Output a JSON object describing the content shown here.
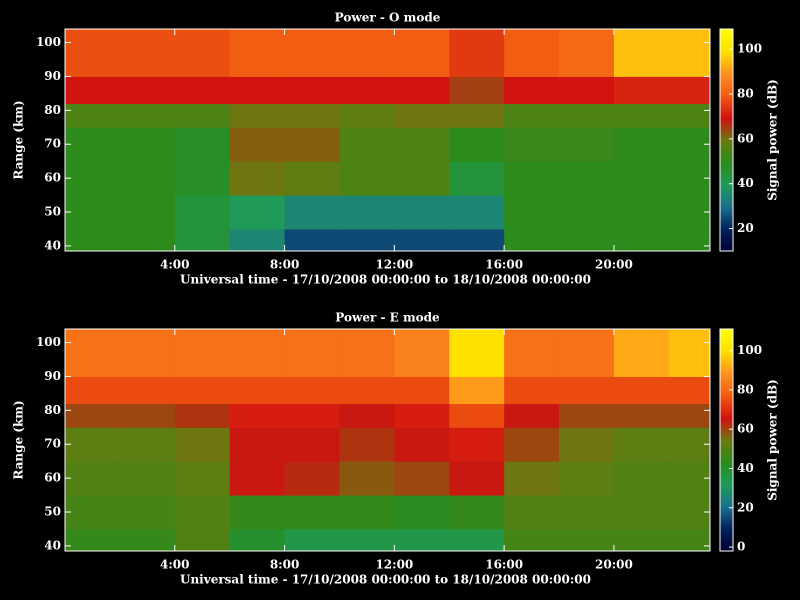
{
  "chart_data": [
    {
      "type": "heatmap",
      "title": "Power - O mode",
      "xlabel": "Universal time - 17/10/2008 00:00:00 to 18/10/2008 00:00:00",
      "ylabel": "Range (km)",
      "colorbar_label": "Signal power (dB)",
      "x_edges": [
        0,
        2,
        4,
        6,
        8,
        10,
        12,
        14,
        16,
        18,
        20,
        22,
        23.5
      ],
      "y_edges": [
        38.5,
        45,
        55,
        65,
        75,
        82,
        90,
        104
      ],
      "z": [
        [
          50,
          50,
          45,
          35,
          25,
          25,
          25,
          25,
          50,
          50,
          50,
          50
        ],
        [
          50,
          50,
          45,
          40,
          35,
          35,
          35,
          35,
          50,
          50,
          50,
          50
        ],
        [
          50,
          50,
          48,
          60,
          58,
          55,
          55,
          45,
          50,
          50,
          50,
          50
        ],
        [
          50,
          50,
          48,
          62,
          62,
          55,
          55,
          50,
          52,
          52,
          50,
          50
        ],
        [
          55,
          55,
          55,
          60,
          60,
          58,
          60,
          60,
          55,
          55,
          55,
          55
        ],
        [
          70,
          70,
          70,
          70,
          70,
          70,
          70,
          65,
          70,
          70,
          72,
          72
        ],
        [
          78,
          78,
          78,
          80,
          80,
          80,
          80,
          75,
          80,
          82,
          95,
          95
        ]
      ],
      "xlim": [
        0,
        23.5
      ],
      "ylim": [
        38.5,
        104
      ],
      "xticks": [
        {
          "value": 4,
          "label": "4:00"
        },
        {
          "value": 8,
          "label": "8:00"
        },
        {
          "value": 12,
          "label": "12:00"
        },
        {
          "value": 16,
          "label": "16:00"
        },
        {
          "value": 20,
          "label": "20:00"
        }
      ],
      "yticks": [
        40,
        50,
        60,
        70,
        80,
        90,
        100
      ],
      "clim": [
        10,
        109
      ],
      "cticks": [
        20,
        40,
        60,
        80,
        100
      ],
      "colormap": [
        "#000030",
        "#00205a",
        "#1a6f8c",
        "#1f9a5a",
        "#2a8c1c",
        "#6a7a10",
        "#d01010",
        "#f05a10",
        "#ff9020",
        "#ffe000",
        "#ffff00"
      ]
    },
    {
      "type": "heatmap",
      "title": "Power - E mode",
      "xlabel": "Universal time - 17/10/2008 00:00:00 to 18/10/2008 00:00:00",
      "ylabel": "Range (km)",
      "colorbar_label": "Signal power (dB)",
      "x_edges": [
        0,
        2,
        4,
        6,
        8,
        10,
        12,
        14,
        16,
        18,
        20,
        22,
        23.5
      ],
      "y_edges": [
        38.5,
        45,
        55,
        65,
        75,
        82,
        90,
        104
      ],
      "z": [
        [
          45,
          45,
          50,
          40,
          35,
          35,
          35,
          35,
          48,
          48,
          48,
          48
        ],
        [
          48,
          48,
          50,
          45,
          45,
          45,
          42,
          45,
          50,
          50,
          50,
          50
        ],
        [
          50,
          50,
          52,
          65,
          63,
          58,
          60,
          65,
          55,
          52,
          50,
          50
        ],
        [
          52,
          52,
          55,
          65,
          65,
          62,
          65,
          68,
          60,
          55,
          52,
          52
        ],
        [
          60,
          60,
          62,
          68,
          68,
          65,
          68,
          75,
          65,
          60,
          60,
          60
        ],
        [
          75,
          75,
          75,
          75,
          75,
          75,
          75,
          90,
          75,
          75,
          75,
          75
        ],
        [
          82,
          82,
          82,
          82,
          82,
          82,
          85,
          100,
          82,
          82,
          92,
          95
        ]
      ],
      "xlim": [
        0,
        23.5
      ],
      "ylim": [
        38.5,
        104
      ],
      "xticks": [
        {
          "value": 4,
          "label": "4:00"
        },
        {
          "value": 8,
          "label": "8:00"
        },
        {
          "value": 12,
          "label": "12:00"
        },
        {
          "value": 16,
          "label": "16:00"
        },
        {
          "value": 20,
          "label": "20:00"
        }
      ],
      "yticks": [
        40,
        50,
        60,
        70,
        80,
        90,
        100
      ],
      "clim": [
        -2,
        111
      ],
      "cticks": [
        0,
        20,
        40,
        60,
        80,
        100
      ],
      "colormap": [
        "#000030",
        "#00205a",
        "#1a6f8c",
        "#1f9a5a",
        "#2a8c1c",
        "#6a7a10",
        "#d01010",
        "#f05a10",
        "#ff9020",
        "#ffe000",
        "#ffff00"
      ]
    }
  ]
}
